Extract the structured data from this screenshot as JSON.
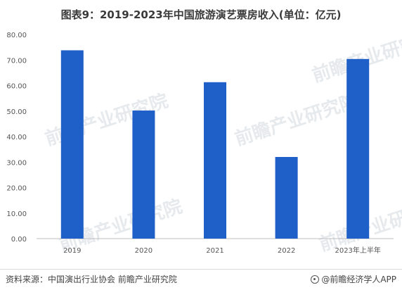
{
  "title": "图表9：2019-2023年中国旅游演艺票房收入(单位：亿元)",
  "chart_data": {
    "type": "bar",
    "categories": [
      "2019",
      "2020",
      "2021",
      "2022",
      "2023年上半年"
    ],
    "values": [
      73.8,
      50.2,
      61.3,
      32.0,
      70.4
    ],
    "ylim": [
      0,
      80
    ],
    "yticks": [
      "0.00",
      "10.00",
      "20.00",
      "30.00",
      "40.00",
      "50.00",
      "60.00",
      "70.00",
      "80.00"
    ],
    "bar_color": "#1f5fc8",
    "grid": false,
    "legend": "none"
  },
  "watermark": "前瞻产业研究院",
  "footer": {
    "source": "资料来源：中国演出行业协会 前瞻产业研究院",
    "brand": "@前瞻经济学人APP"
  }
}
